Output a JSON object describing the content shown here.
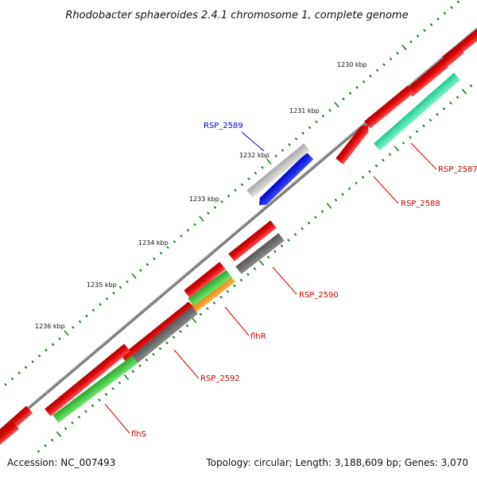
{
  "map": {
    "title": "Rhodobacter sphaeroides 2.4.1 chromosome 1, complete genome",
    "accession": "Accession: NC_007493",
    "summary": "Topology: circular; Length: 3,188,609 bp; Genes: 3,070",
    "colors": {
      "background": "#ffffff",
      "backbone": "#8c8c8c",
      "tick": "#1e7d1e",
      "gene_default": "#e01010",
      "gene_grey": "#6b6b6b",
      "gene_green": "#3cc83c",
      "gene_orange": "#f0900a",
      "gene_cyan": "#40e0a8",
      "gene_blue": "#0a14ee",
      "gene_light": "#c4c4c4",
      "label_red": "#cc0000",
      "label_blue": "#0000cc"
    },
    "scale_labels": [
      "1230 kbp",
      "1231 kbp",
      "1232 kbp",
      "1233 kbp",
      "1234 kbp",
      "1235 kbp",
      "1236 kbp"
    ],
    "gene_labels": [
      {
        "id": "rsp2587",
        "text": "RSP_2587",
        "color": "red"
      },
      {
        "id": "rsp2588",
        "text": "RSP_2588",
        "color": "red"
      },
      {
        "id": "rsp2589",
        "text": "RSP_2589",
        "color": "blue"
      },
      {
        "id": "rsp2590",
        "text": "RSP_2590",
        "color": "red"
      },
      {
        "id": "flhr",
        "text": "flhR",
        "color": "red"
      },
      {
        "id": "rsp2592",
        "text": "RSP_2592",
        "color": "red"
      },
      {
        "id": "flhs",
        "text": "flhS",
        "color": "red"
      }
    ]
  }
}
